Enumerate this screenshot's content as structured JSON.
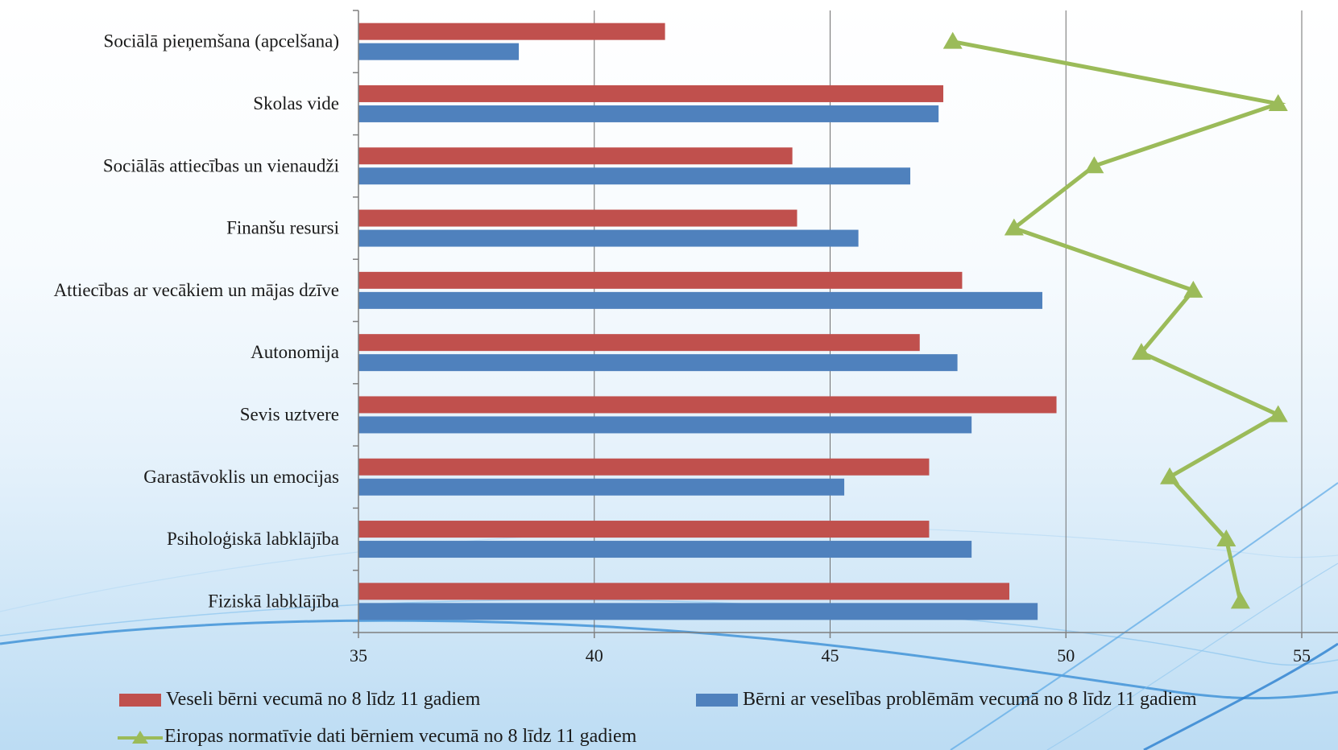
{
  "chart_data": {
    "type": "bar",
    "orientation": "horizontal",
    "categories": [
      "Sociālā pieņemšana (apcelšana)",
      "Skolas vide",
      "Sociālās attiecības un vienaudži",
      "Finanšu resursi",
      "Attiecības ar vecākiem un mājas dzīve",
      "Autonomija",
      "Sevis uztvere",
      "Garastāvoklis un emocijas",
      "Psiholoģiskā labklājība",
      "Fiziskā labklājība"
    ],
    "series": [
      {
        "name": "Veseli bērni vecumā no 8 līdz 11 gadiem",
        "type": "bar",
        "color": "#c0504d",
        "values": [
          41.5,
          47.4,
          44.2,
          44.3,
          47.8,
          46.9,
          49.8,
          47.1,
          47.1,
          48.8
        ]
      },
      {
        "name": "Bērni ar veselības problēmām vecumā no 8 līdz 11 gadiem",
        "type": "bar",
        "color": "#4f81bd",
        "values": [
          38.4,
          47.3,
          46.7,
          45.6,
          49.5,
          47.7,
          48.0,
          45.3,
          48.0,
          49.4
        ]
      },
      {
        "name": "Eiropas normatīvie dati bērniem vecumā no 8 līdz 11 gadiem",
        "type": "line",
        "color": "#9bbb59",
        "values": [
          47.6,
          54.5,
          50.6,
          48.9,
          52.7,
          51.6,
          54.5,
          52.2,
          53.4,
          53.7
        ]
      }
    ],
    "x_ticks": [
      "35",
      "40",
      "45",
      "50",
      "55"
    ],
    "xlim": [
      35,
      55
    ],
    "grid": "vertical",
    "legend_position": "bottom"
  }
}
